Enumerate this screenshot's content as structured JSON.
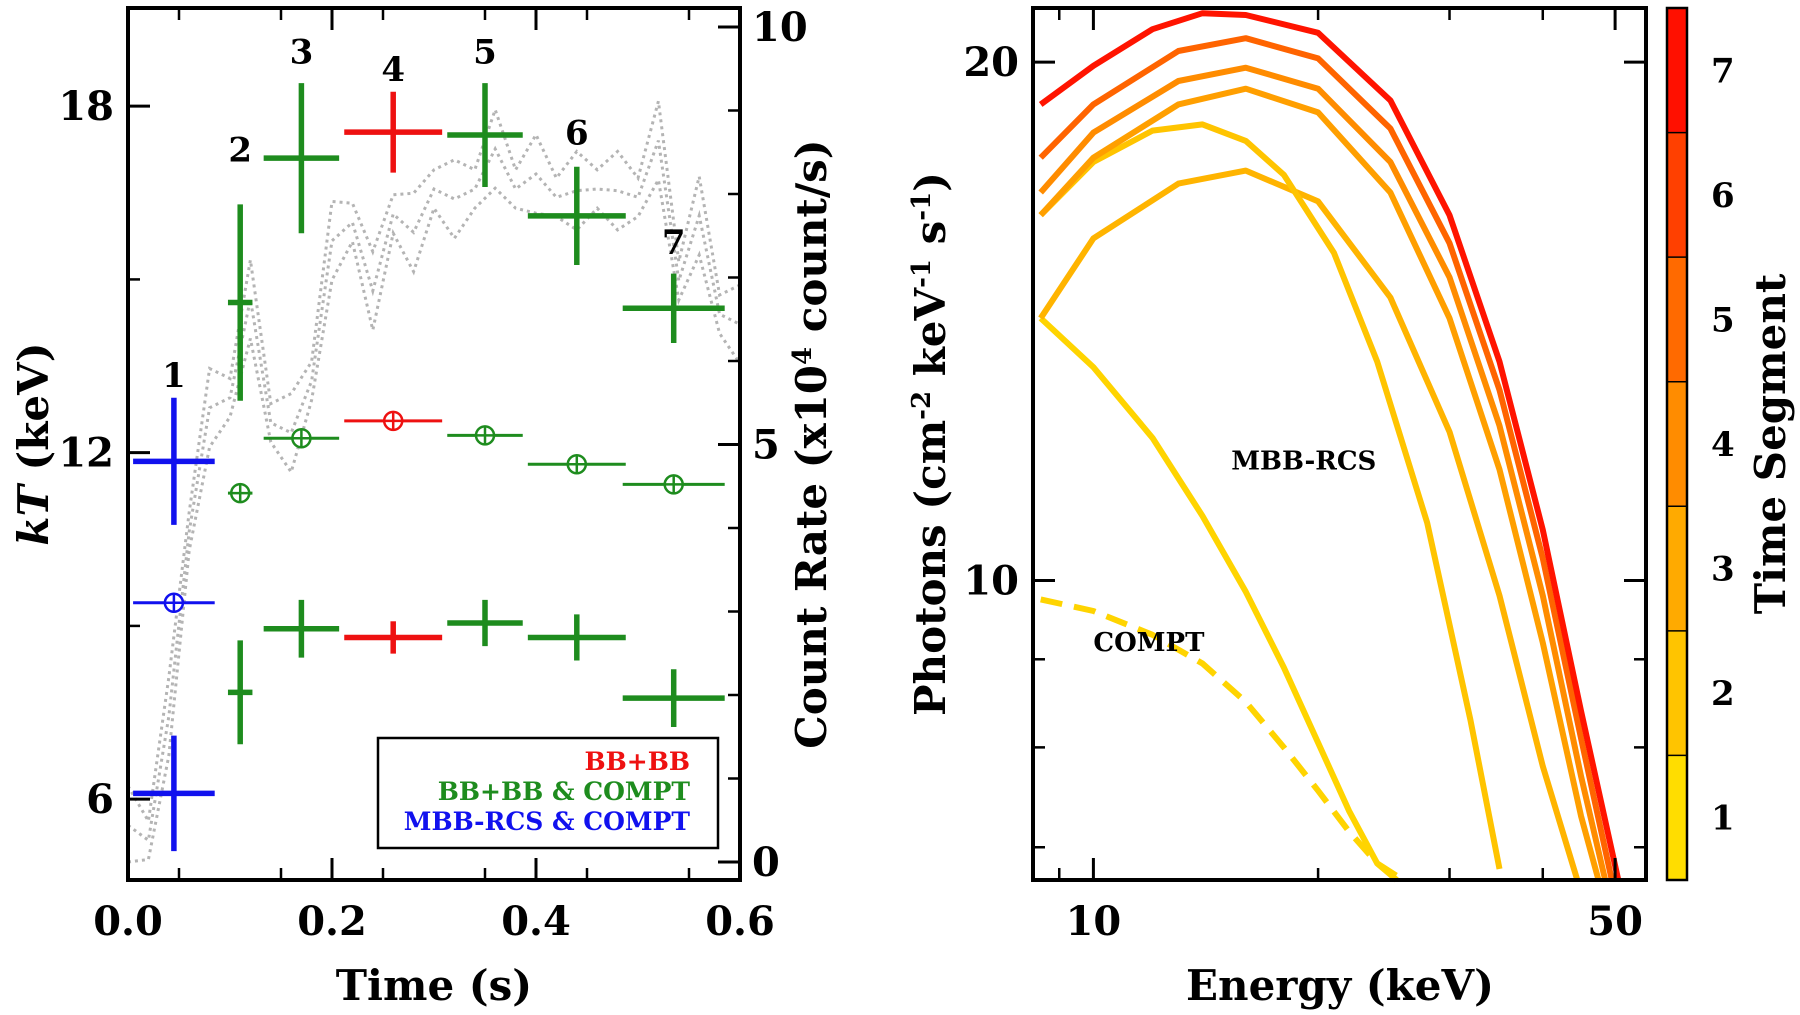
{
  "chart_data": [
    {
      "type": "scatter",
      "panel": "left",
      "xlabel": "Time (s)",
      "ylabel": "kT (keV)",
      "ylabel_italic": "kT",
      "ylabel_rest": " (keV)",
      "y2label": "Count Rate (x10⁴ count/s)",
      "y2label_parts": [
        "Count Rate (x10",
        "4",
        " count/s)"
      ],
      "xlim": [
        0,
        0.6
      ],
      "ylim": [
        4.6,
        19.7
      ],
      "y2lim": [
        0,
        10
      ],
      "x_ticks": [
        "0.0",
        "0.2",
        "0.4",
        "0.6"
      ],
      "y_ticks": [
        "6",
        "12",
        "18"
      ],
      "y2_ticks": [
        "0",
        "5",
        "10"
      ],
      "segment_labels": [
        {
          "label": "1",
          "x": 0.045,
          "y": 13.0
        },
        {
          "label": "2",
          "x": 0.11,
          "y": 16.9
        },
        {
          "label": "3",
          "x": 0.17,
          "y": 18.6
        },
        {
          "label": "4",
          "x": 0.26,
          "y": 18.3
        },
        {
          "label": "5",
          "x": 0.35,
          "y": 18.6
        },
        {
          "label": "6",
          "x": 0.44,
          "y": 17.2
        },
        {
          "label": "7",
          "x": 0.535,
          "y": 15.3
        }
      ],
      "legend": {
        "position": "bottom-right",
        "entries": [
          {
            "label": "BB+BB",
            "color": "#ee1111"
          },
          {
            "label": "BB+BB & COMPT",
            "color": "#1e8c1e"
          },
          {
            "label": "MBB-RCS & COMPT",
            "color": "#1111ee"
          }
        ]
      },
      "high_temperature": [
        {
          "x": 0.045,
          "xerr": 0.04,
          "y": 11.85,
          "yerr": 1.1,
          "color": "#1111ee"
        },
        {
          "x": 0.11,
          "xerr": 0.012,
          "y": 14.6,
          "yerr": 1.7,
          "color": "#1e8c1e"
        },
        {
          "x": 0.17,
          "xerr": 0.037,
          "y": 17.1,
          "yerr": 1.3,
          "color": "#1e8c1e"
        },
        {
          "x": 0.26,
          "xerr": 0.048,
          "y": 17.55,
          "yerr": 0.7,
          "color": "#ee1111"
        },
        {
          "x": 0.35,
          "xerr": 0.037,
          "y": 17.5,
          "yerr": 0.9,
          "color": "#1e8c1e"
        },
        {
          "x": 0.44,
          "xerr": 0.048,
          "y": 16.1,
          "yerr": 0.85,
          "color": "#1e8c1e"
        },
        {
          "x": 0.535,
          "xerr": 0.05,
          "y": 14.5,
          "yerr": 0.6,
          "color": "#1e8c1e"
        }
      ],
      "low_temperature": [
        {
          "x": 0.045,
          "xerr": 0.04,
          "y": 6.1,
          "yerr": 1.0,
          "color": "#1111ee"
        },
        {
          "x": 0.11,
          "xerr": 0.012,
          "y": 7.85,
          "yerr": 0.9,
          "color": "#1e8c1e"
        },
        {
          "x": 0.17,
          "xerr": 0.037,
          "y": 8.95,
          "yerr": 0.5,
          "color": "#1e8c1e"
        },
        {
          "x": 0.26,
          "xerr": 0.048,
          "y": 8.8,
          "yerr": 0.28,
          "color": "#ee1111"
        },
        {
          "x": 0.35,
          "xerr": 0.037,
          "y": 9.05,
          "yerr": 0.4,
          "color": "#1e8c1e"
        },
        {
          "x": 0.44,
          "xerr": 0.048,
          "y": 8.8,
          "yerr": 0.4,
          "color": "#1e8c1e"
        },
        {
          "x": 0.535,
          "xerr": 0.05,
          "y": 7.75,
          "yerr": 0.5,
          "color": "#1e8c1e"
        }
      ],
      "compt_temperature": [
        {
          "x": 0.045,
          "xerr": 0.04,
          "y": 9.4,
          "color": "#1111ee"
        },
        {
          "x": 0.11,
          "xerr": 0.012,
          "y": 11.3,
          "color": "#1e8c1e"
        },
        {
          "x": 0.17,
          "xerr": 0.037,
          "y": 12.25,
          "color": "#1e8c1e"
        },
        {
          "x": 0.26,
          "xerr": 0.048,
          "y": 12.55,
          "color": "#ee1111"
        },
        {
          "x": 0.35,
          "xerr": 0.037,
          "y": 12.3,
          "color": "#1e8c1e"
        },
        {
          "x": 0.44,
          "xerr": 0.048,
          "y": 11.8,
          "color": "#1e8c1e"
        },
        {
          "x": 0.535,
          "xerr": 0.05,
          "y": 11.45,
          "color": "#1e8c1e"
        }
      ],
      "count_rate_curve": {
        "units": "x10^4 count/s",
        "color": "#b4b4b4",
        "t": [
          0.0,
          0.02,
          0.04,
          0.06,
          0.08,
          0.1,
          0.12,
          0.14,
          0.16,
          0.18,
          0.2,
          0.22,
          0.24,
          0.26,
          0.28,
          0.3,
          0.32,
          0.34,
          0.36,
          0.38,
          0.4,
          0.42,
          0.44,
          0.46,
          0.48,
          0.5,
          0.52,
          0.54,
          0.56,
          0.58,
          0.6
        ],
        "rate": [
          0.2,
          0.5,
          1.5,
          4.2,
          5.2,
          5.8,
          6.5,
          5.5,
          4.9,
          6.0,
          7.2,
          7.9,
          6.6,
          8.0,
          7.3,
          8.3,
          7.7,
          8.3,
          8.3,
          8.3,
          8.0,
          8.2,
          7.8,
          8.3,
          7.8,
          8.2,
          8.4,
          7.2,
          7.5,
          6.8,
          6.2
        ]
      }
    },
    {
      "type": "line",
      "panel": "right",
      "xlabel": "Energy (keV)",
      "ylabel": "Photons (cm⁻² keV⁻¹ s⁻¹)",
      "ylabel_parts": [
        "Photons (cm",
        "-2",
        " keV",
        "-1",
        " s",
        "-1",
        ")"
      ],
      "x_scale": "log",
      "y_scale": "log",
      "xlim": [
        8.3,
        55
      ],
      "ylim": [
        6.7,
        21.5
      ],
      "x_ticks": [
        "10",
        "50"
      ],
      "y_ticks": [
        "10",
        "20"
      ],
      "annotations": [
        "MBB-RCS",
        "COMPT"
      ],
      "annotation_positions": [
        {
          "text": "MBB-RCS",
          "energy": 15.3,
          "photons": 11.6
        },
        {
          "text": "COMPT",
          "energy": 10.0,
          "photons": 9.1
        }
      ],
      "colorbar": {
        "label": "Time Segment",
        "ticks": [
          "1",
          "2",
          "3",
          "4",
          "5",
          "6",
          "7"
        ],
        "colors": [
          "#ffdd00",
          "#ffc400",
          "#ffaa00",
          "#ff8c00",
          "#ff6a00",
          "#ff4000",
          "#ff1000"
        ]
      },
      "series": [
        {
          "name": "1 MBB-RCS",
          "segment": 1,
          "color": "#ffd400",
          "dashed": false,
          "x": [
            8.5,
            10,
            12,
            14,
            16,
            18,
            20,
            22,
            24,
            25.5
          ],
          "y": [
            14.2,
            13.3,
            12.1,
            10.9,
            9.85,
            8.9,
            8.05,
            7.35,
            6.85,
            6.7
          ]
        },
        {
          "name": "1 COMPT",
          "segment": 1,
          "color": "#ffd400",
          "dashed": true,
          "x": [
            8.5,
            10,
            12,
            14,
            16,
            18,
            20,
            22,
            24,
            26
          ],
          "y": [
            9.75,
            9.6,
            9.3,
            8.95,
            8.5,
            8.0,
            7.55,
            7.15,
            6.85,
            6.7
          ]
        },
        {
          "name": "2",
          "segment": 2,
          "color": "#ffb400",
          "dashed": false,
          "x": [
            8.5,
            10,
            13,
            16,
            20,
            25,
            30,
            35,
            40,
            44.5
          ],
          "y": [
            14.2,
            15.8,
            17.0,
            17.3,
            16.6,
            14.6,
            12.2,
            9.8,
            7.8,
            6.7
          ]
        },
        {
          "name": "3",
          "segment": 3,
          "color": "#ffc400",
          "dashed": false,
          "x": [
            8.5,
            10,
            12,
            14,
            16,
            18,
            21,
            24,
            28,
            32,
            35
          ],
          "y": [
            16.3,
            17.5,
            18.25,
            18.4,
            18.0,
            17.2,
            15.5,
            13.4,
            10.8,
            8.3,
            6.8
          ]
        },
        {
          "name": "4",
          "segment": 4,
          "color": "#ff9f00",
          "dashed": false,
          "x": [
            8.5,
            10,
            13,
            16,
            20,
            25,
            30,
            35,
            40,
            45,
            47.5
          ],
          "y": [
            16.3,
            17.6,
            18.9,
            19.3,
            18.7,
            16.8,
            14.2,
            11.6,
            9.2,
            7.3,
            6.7
          ]
        },
        {
          "name": "5",
          "segment": 5,
          "color": "#ff8c00",
          "dashed": false,
          "x": [
            8.5,
            10,
            13,
            16,
            20,
            25,
            30,
            35,
            40,
            45,
            48.5
          ],
          "y": [
            16.8,
            18.2,
            19.5,
            19.85,
            19.3,
            17.5,
            15.0,
            12.3,
            9.8,
            7.7,
            6.7
          ]
        },
        {
          "name": "6",
          "segment": 6,
          "color": "#ff6400",
          "dashed": false,
          "x": [
            8.5,
            10,
            13,
            16,
            20,
            25,
            30,
            35,
            40,
            45,
            49.5
          ],
          "y": [
            17.6,
            18.9,
            20.3,
            20.65,
            20.1,
            18.3,
            15.7,
            12.9,
            10.3,
            8.1,
            6.7
          ]
        },
        {
          "name": "7",
          "segment": 7,
          "color": "#ff1400",
          "dashed": false,
          "x": [
            8.5,
            10,
            12,
            14,
            16,
            20,
            25,
            30,
            35,
            40,
            45,
            50.5
          ],
          "y": [
            18.9,
            19.9,
            20.9,
            21.35,
            21.3,
            20.8,
            19.0,
            16.3,
            13.4,
            10.7,
            8.4,
            6.7
          ]
        }
      ]
    }
  ]
}
